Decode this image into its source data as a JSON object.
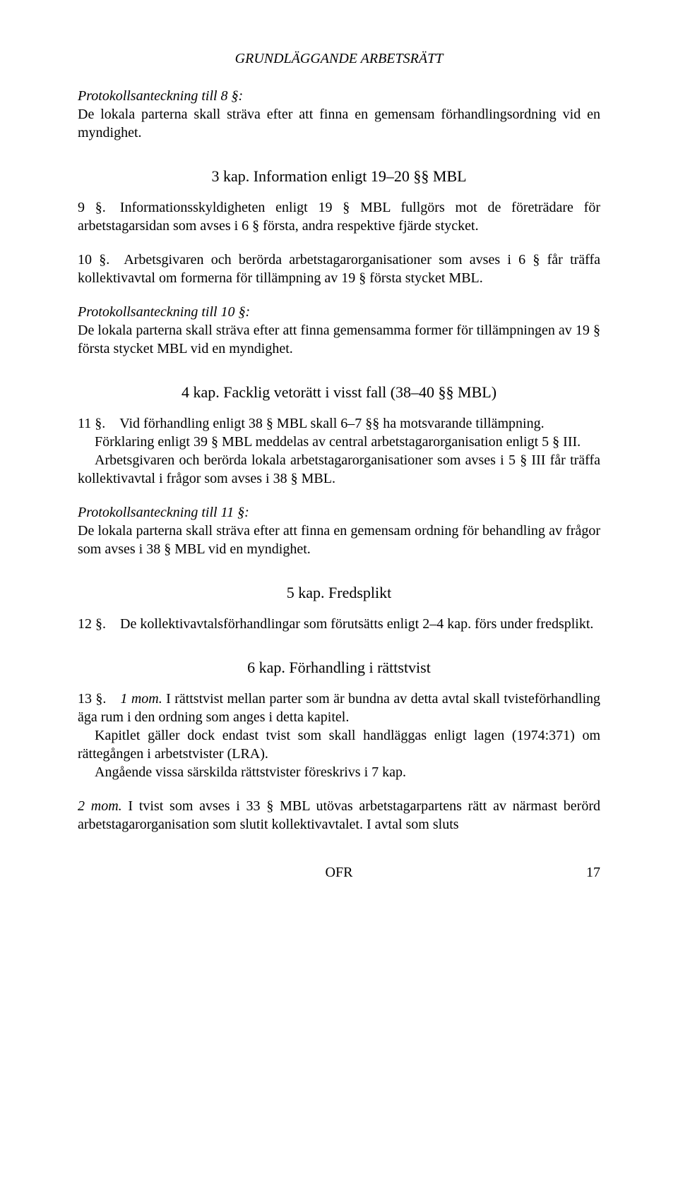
{
  "header": "GRUNDLÄGGANDE ARBETSRÄTT",
  "protokoll8": {
    "title": "Protokollsanteckning till 8 §:",
    "body": "De lokala parterna skall sträva efter att finna en gemensam förhandlingsordning vid en myndighet."
  },
  "kap3": {
    "title": "3 kap. Information enligt 19–20 §§ MBL",
    "p9": "9 §. Informationsskyldigheten enligt 19 § MBL fullgörs mot de företrädare för arbetstagarsidan som avses i 6 § första, andra respektive fjärde stycket.",
    "p10": "10 §. Arbetsgivaren och berörda arbetstagarorganisationer som avses i 6 § får träffa kollektivavtal om formerna för tillämpning av 19 § första stycket MBL."
  },
  "protokoll10": {
    "title": "Protokollsanteckning till 10 §:",
    "body": "De lokala parterna skall sträva efter att finna gemensamma former för tillämpningen av 19 § första stycket MBL vid en myndighet."
  },
  "kap4": {
    "title": "4 kap. Facklig vetorätt i visst fall (38–40 §§ MBL)",
    "p11a": "11 §. Vid förhandling enligt 38 § MBL skall 6–7 §§ ha motsvarande tillämpning.",
    "p11b": "Förklaring enligt 39 § MBL meddelas av central arbetstagarorganisation enligt 5 § III.",
    "p11c": "Arbetsgivaren och berörda lokala arbetstagarorganisationer som avses i 5 § III får träffa kollektivavtal i frågor som avses i 38 § MBL."
  },
  "protokoll11": {
    "title": "Protokollsanteckning till 11 §:",
    "body": "De lokala parterna skall sträva efter att finna en gemensam ordning för behandling av frågor som avses i 38 § MBL vid en myndighet."
  },
  "kap5": {
    "title": "5 kap. Fredsplikt",
    "p12": "12 §. De kollektivavtalsförhandlingar som förutsätts enligt 2–4 kap. förs under fredsplikt."
  },
  "kap6": {
    "title": "6 kap. Förhandling i rättstvist",
    "p13_prefix": "13 §. ",
    "p13_mom": "1 mom.",
    "p13a": " I rättstvist mellan parter som är bundna av detta avtal skall tvisteförhandling äga rum i den ordning som anges i detta kapitel.",
    "p13b": "Kapitlet gäller dock endast tvist som skall handläggas enligt lagen (1974:371) om rättegången i arbetstvister (LRA).",
    "p13c": "Angående vissa särskilda rättstvister föreskrivs i 7 kap.",
    "p2mom_label": "2 mom.",
    "p2mom_body": " I tvist som avses i 33 § MBL utövas arbetstagarpartens rätt av närmast berörd arbetstagarorganisation som slutit kollektivavtalet. I avtal som sluts"
  },
  "footer": {
    "center": "OFR",
    "page": "17"
  }
}
